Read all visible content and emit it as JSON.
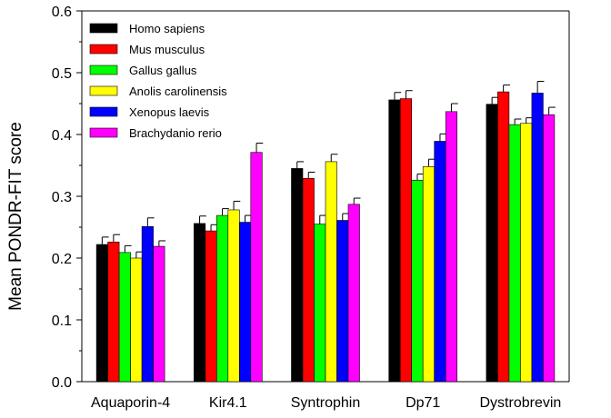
{
  "chart_data": {
    "type": "bar",
    "title": "",
    "xlabel": "",
    "ylabel": "Mean PONDR-FIT score",
    "ylim": [
      0,
      0.6
    ],
    "yticks": [
      "0.0",
      "0.1",
      "0.2",
      "0.3",
      "0.4",
      "0.5",
      "0.6"
    ],
    "legend_position": "top-left",
    "error_bars": true,
    "grid": false,
    "categories": [
      "Aquaporin-4",
      "Kir4.1",
      "Syntrophin",
      "Dp71",
      "Dystrobrevin"
    ],
    "series": [
      {
        "name": "Homo sapiens",
        "color": "#000000",
        "values": [
          0.222,
          0.256,
          0.345,
          0.456,
          0.449
        ],
        "errors": [
          0.012,
          0.012,
          0.011,
          0.012,
          0.011
        ]
      },
      {
        "name": "Mus musculus",
        "color": "#ff0000",
        "values": [
          0.226,
          0.244,
          0.329,
          0.458,
          0.469
        ],
        "errors": [
          0.012,
          0.01,
          0.01,
          0.013,
          0.011
        ]
      },
      {
        "name": "Gallus gallus",
        "color": "#00ff00",
        "values": [
          0.209,
          0.269,
          0.255,
          0.326,
          0.416
        ],
        "errors": [
          0.011,
          0.011,
          0.014,
          0.01,
          0.009
        ]
      },
      {
        "name": "Anolis carolinensis",
        "color": "#ffff00",
        "values": [
          0.2,
          0.278,
          0.356,
          0.348,
          0.418
        ],
        "errors": [
          0.01,
          0.014,
          0.012,
          0.012,
          0.009
        ]
      },
      {
        "name": "Xenopus laevis",
        "color": "#0000ff",
        "values": [
          0.251,
          0.258,
          0.261,
          0.389,
          0.467
        ],
        "errors": [
          0.014,
          0.011,
          0.011,
          0.012,
          0.019
        ]
      },
      {
        "name": "Brachydanio rerio",
        "color": "#ff00ff",
        "values": [
          0.219,
          0.371,
          0.287,
          0.437,
          0.432
        ],
        "errors": [
          0.009,
          0.015,
          0.01,
          0.013,
          0.012
        ]
      }
    ]
  }
}
